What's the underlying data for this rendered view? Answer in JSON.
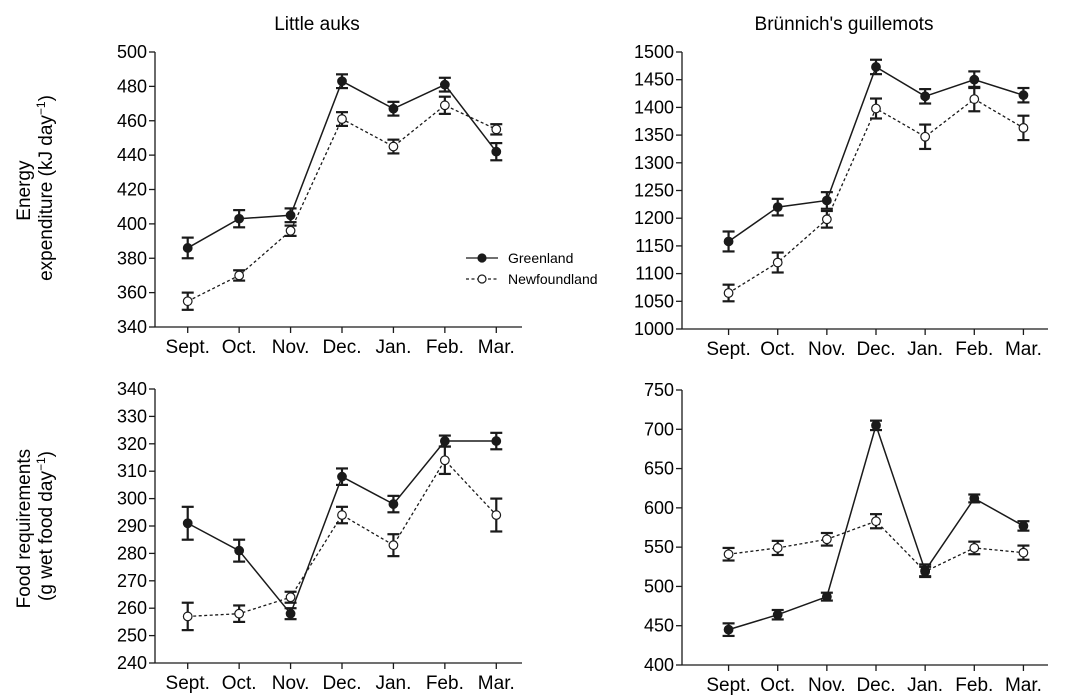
{
  "figure": {
    "column_titles": [
      "Little auks",
      "Brünnich's guillemots"
    ],
    "row_ylabels": [
      [
        "Energy",
        "expenditure (kJ day",
        "−1",
        ")"
      ],
      [
        "Food requirements",
        "(g wet food day",
        "−1",
        ")"
      ]
    ],
    "colors": {
      "line": "#1a1a1a",
      "open_fill": "#ffffff"
    }
  },
  "chart_data": [
    {
      "type": "line",
      "id": "panel-la-energy",
      "title": "Little auks",
      "ylabel": "Energy expenditure (kJ day-1)",
      "categories": [
        "Sept.",
        "Oct.",
        "Nov.",
        "Dec.",
        "Jan.",
        "Feb.",
        "Mar."
      ],
      "ylim": [
        340,
        500
      ],
      "yticks": [
        340,
        360,
        380,
        400,
        420,
        440,
        460,
        480,
        500
      ],
      "legend": {
        "position": "center-right",
        "entries": [
          "Greenland",
          "Newfoundland"
        ]
      },
      "series": [
        {
          "name": "Greenland",
          "marker": "filled",
          "line": "solid",
          "values": [
            386,
            403,
            405,
            483,
            467,
            481,
            442
          ],
          "errors": [
            6,
            5,
            4,
            4,
            4,
            4,
            5
          ]
        },
        {
          "name": "Newfoundland",
          "marker": "open",
          "line": "dashed",
          "values": [
            355,
            370,
            396,
            461,
            445,
            469,
            455
          ],
          "errors": [
            5,
            3,
            3,
            4,
            4,
            5,
            3
          ]
        }
      ]
    },
    {
      "type": "line",
      "id": "panel-bg-energy",
      "title": "Brünnich's guillemots",
      "ylabel": "",
      "categories": [
        "Sept.",
        "Oct.",
        "Nov.",
        "Dec.",
        "Jan.",
        "Feb.",
        "Mar."
      ],
      "ylim": [
        1000,
        1500
      ],
      "yticks": [
        1000,
        1050,
        1100,
        1150,
        1200,
        1250,
        1300,
        1350,
        1400,
        1450,
        1500
      ],
      "series": [
        {
          "name": "Greenland",
          "marker": "filled",
          "line": "solid",
          "values": [
            1158,
            1220,
            1232,
            1473,
            1420,
            1450,
            1422
          ],
          "errors": [
            18,
            15,
            15,
            13,
            13,
            15,
            13
          ]
        },
        {
          "name": "Newfoundland",
          "marker": "open",
          "line": "dashed",
          "values": [
            1065,
            1120,
            1198,
            1398,
            1347,
            1415,
            1363
          ],
          "errors": [
            15,
            18,
            15,
            18,
            22,
            22,
            22
          ]
        }
      ]
    },
    {
      "type": "line",
      "id": "panel-la-food",
      "title": "",
      "ylabel": "Food requirements (g wet food day-1)",
      "categories": [
        "Sept.",
        "Oct.",
        "Nov.",
        "Dec.",
        "Jan.",
        "Feb.",
        "Mar."
      ],
      "ylim": [
        240,
        340
      ],
      "yticks": [
        240,
        250,
        260,
        270,
        280,
        290,
        300,
        310,
        320,
        330,
        340
      ],
      "series": [
        {
          "name": "Greenland",
          "marker": "filled",
          "line": "solid",
          "values": [
            291,
            281,
            258,
            308,
            298,
            321,
            321
          ],
          "errors": [
            6,
            4,
            2,
            3,
            3,
            2,
            3
          ]
        },
        {
          "name": "Newfoundland",
          "marker": "open",
          "line": "dashed",
          "values": [
            257,
            258,
            264,
            294,
            283,
            314,
            294
          ],
          "errors": [
            5,
            3,
            2,
            3,
            4,
            5,
            6
          ]
        }
      ]
    },
    {
      "type": "line",
      "id": "panel-bg-food",
      "title": "",
      "ylabel": "",
      "categories": [
        "Sept.",
        "Oct.",
        "Nov.",
        "Dec.",
        "Jan.",
        "Feb.",
        "Mar."
      ],
      "ylim": [
        400,
        750
      ],
      "yticks": [
        400,
        450,
        500,
        550,
        600,
        650,
        700,
        750
      ],
      "series": [
        {
          "name": "Greenland",
          "marker": "filled",
          "line": "solid",
          "values": [
            445,
            464,
            487,
            705,
            520,
            612,
            577
          ],
          "errors": [
            8,
            6,
            5,
            6,
            8,
            5,
            6
          ]
        },
        {
          "name": "Newfoundland",
          "marker": "open",
          "line": "dashed",
          "values": [
            541,
            549,
            560,
            583,
            519,
            549,
            543
          ],
          "errors": [
            8,
            9,
            8,
            9,
            6,
            8,
            9
          ]
        }
      ]
    }
  ]
}
